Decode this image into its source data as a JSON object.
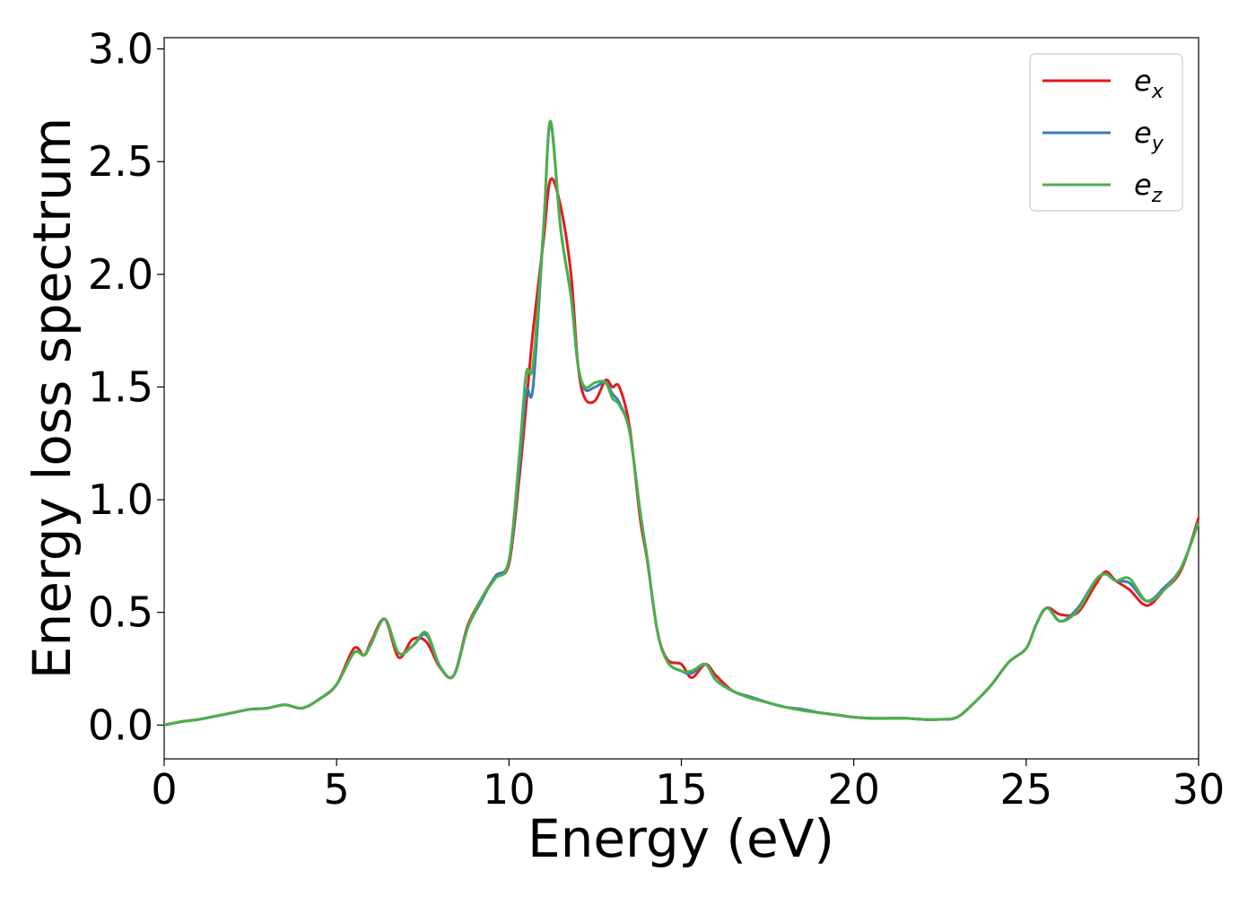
{
  "chart_data": {
    "type": "line",
    "title": "",
    "xlabel": "Energy (eV)",
    "ylabel": "Energy loss spectrum",
    "xlim": [
      0,
      30
    ],
    "ylim": [
      -0.15,
      3.05
    ],
    "xticks": [
      0,
      5,
      10,
      15,
      20,
      25,
      30
    ],
    "yticks": [
      0.0,
      0.5,
      1.0,
      1.5,
      2.0,
      2.5,
      3.0
    ],
    "xtick_labels": [
      "0",
      "5",
      "10",
      "15",
      "20",
      "25",
      "30"
    ],
    "ytick_labels": [
      "0.0",
      "0.5",
      "1.0",
      "1.5",
      "2.0",
      "2.5",
      "3.0"
    ],
    "grid": false,
    "legend_position": "top-right",
    "series": [
      {
        "base": "e",
        "sub": "x",
        "color": "#e41a1c",
        "x": [
          0,
          0.5,
          1,
          1.5,
          2,
          2.5,
          3,
          3.5,
          4,
          4.5,
          5,
          5.5,
          5.8,
          6,
          6.4,
          6.8,
          7.2,
          7.6,
          8,
          8.4,
          8.8,
          9.2,
          9.6,
          10,
          10.3,
          10.5,
          10.7,
          11,
          11.2,
          11.5,
          11.8,
          12,
          12.2,
          12.5,
          12.8,
          13,
          13.2,
          13.5,
          13.8,
          14,
          14.3,
          14.6,
          15,
          15.3,
          15.7,
          16,
          16.5,
          17,
          17.5,
          18,
          18.5,
          19,
          19.5,
          20,
          20.5,
          21,
          21.5,
          22,
          22.5,
          23,
          23.5,
          24,
          24.5,
          25,
          25.3,
          25.6,
          26,
          26.5,
          27,
          27.3,
          27.6,
          28,
          28.5,
          29,
          29.5,
          30
        ],
        "y": [
          0,
          0.015,
          0.025,
          0.04,
          0.055,
          0.07,
          0.075,
          0.09,
          0.075,
          0.115,
          0.18,
          0.34,
          0.31,
          0.37,
          0.47,
          0.3,
          0.38,
          0.37,
          0.255,
          0.22,
          0.44,
          0.56,
          0.655,
          0.715,
          1.1,
          1.42,
          1.75,
          2.15,
          2.42,
          2.3,
          2.0,
          1.6,
          1.45,
          1.44,
          1.53,
          1.5,
          1.5,
          1.32,
          0.92,
          0.74,
          0.42,
          0.29,
          0.27,
          0.21,
          0.27,
          0.22,
          0.15,
          0.125,
          0.1,
          0.08,
          0.07,
          0.055,
          0.045,
          0.035,
          0.03,
          0.03,
          0.03,
          0.025,
          0.025,
          0.035,
          0.1,
          0.18,
          0.28,
          0.34,
          0.45,
          0.52,
          0.49,
          0.5,
          0.62,
          0.68,
          0.64,
          0.6,
          0.53,
          0.6,
          0.69,
          0.92
        ]
      },
      {
        "base": "e",
        "sub": "y",
        "color": "#377eb8",
        "x": [
          0,
          0.5,
          1,
          1.5,
          2,
          2.5,
          3,
          3.5,
          4,
          4.5,
          5,
          5.5,
          5.8,
          6,
          6.4,
          6.8,
          7.2,
          7.6,
          8,
          8.4,
          8.8,
          9.2,
          9.6,
          10,
          10.3,
          10.5,
          10.7,
          11,
          11.2,
          11.5,
          11.8,
          12,
          12.2,
          12.5,
          12.8,
          13,
          13.2,
          13.5,
          13.8,
          14,
          14.3,
          14.6,
          15,
          15.3,
          15.7,
          16,
          16.5,
          17,
          17.5,
          18,
          18.5,
          19,
          19.5,
          20,
          20.5,
          21,
          21.5,
          22,
          22.5,
          23,
          23.5,
          24,
          24.5,
          25,
          25.3,
          25.6,
          26,
          26.5,
          27,
          27.3,
          27.6,
          28,
          28.5,
          29,
          29.5,
          30
        ],
        "y": [
          0,
          0.015,
          0.025,
          0.04,
          0.055,
          0.07,
          0.075,
          0.09,
          0.075,
          0.115,
          0.18,
          0.32,
          0.31,
          0.36,
          0.47,
          0.32,
          0.35,
          0.4,
          0.26,
          0.22,
          0.43,
          0.55,
          0.66,
          0.73,
          1.15,
          1.48,
          1.5,
          2.2,
          2.67,
          2.2,
          1.9,
          1.6,
          1.49,
          1.5,
          1.52,
          1.47,
          1.43,
          1.3,
          0.95,
          0.75,
          0.42,
          0.28,
          0.24,
          0.23,
          0.27,
          0.2,
          0.15,
          0.125,
          0.1,
          0.08,
          0.07,
          0.055,
          0.045,
          0.035,
          0.03,
          0.03,
          0.03,
          0.025,
          0.025,
          0.035,
          0.1,
          0.18,
          0.28,
          0.34,
          0.45,
          0.52,
          0.46,
          0.52,
          0.64,
          0.67,
          0.64,
          0.63,
          0.55,
          0.61,
          0.7,
          0.9
        ]
      },
      {
        "base": "e",
        "sub": "z",
        "color": "#4daf4a",
        "x": [
          0,
          0.5,
          1,
          1.5,
          2,
          2.5,
          3,
          3.5,
          4,
          4.5,
          5,
          5.5,
          5.8,
          6,
          6.4,
          6.8,
          7.2,
          7.6,
          8,
          8.4,
          8.8,
          9.2,
          9.6,
          10,
          10.3,
          10.5,
          10.7,
          11,
          11.2,
          11.5,
          11.8,
          12,
          12.2,
          12.5,
          12.8,
          13,
          13.2,
          13.5,
          13.8,
          14,
          14.3,
          14.6,
          15,
          15.3,
          15.7,
          16,
          16.5,
          17,
          17.5,
          18,
          18.5,
          19,
          19.5,
          20,
          20.5,
          21,
          21.5,
          22,
          22.5,
          23,
          23.5,
          24,
          24.5,
          25,
          25.3,
          25.6,
          26,
          26.5,
          27,
          27.3,
          27.6,
          28,
          28.5,
          29,
          29.5,
          30
        ],
        "y": [
          0,
          0.015,
          0.025,
          0.04,
          0.055,
          0.07,
          0.075,
          0.09,
          0.075,
          0.115,
          0.18,
          0.32,
          0.31,
          0.36,
          0.47,
          0.32,
          0.35,
          0.41,
          0.26,
          0.22,
          0.43,
          0.56,
          0.65,
          0.73,
          1.2,
          1.56,
          1.6,
          2.2,
          2.68,
          2.2,
          1.9,
          1.6,
          1.5,
          1.52,
          1.52,
          1.45,
          1.42,
          1.3,
          0.95,
          0.75,
          0.42,
          0.28,
          0.24,
          0.24,
          0.27,
          0.2,
          0.15,
          0.12,
          0.1,
          0.08,
          0.065,
          0.055,
          0.045,
          0.035,
          0.03,
          0.03,
          0.03,
          0.025,
          0.025,
          0.035,
          0.1,
          0.18,
          0.28,
          0.34,
          0.45,
          0.52,
          0.46,
          0.51,
          0.64,
          0.67,
          0.64,
          0.65,
          0.55,
          0.6,
          0.7,
          0.9
        ]
      }
    ]
  }
}
